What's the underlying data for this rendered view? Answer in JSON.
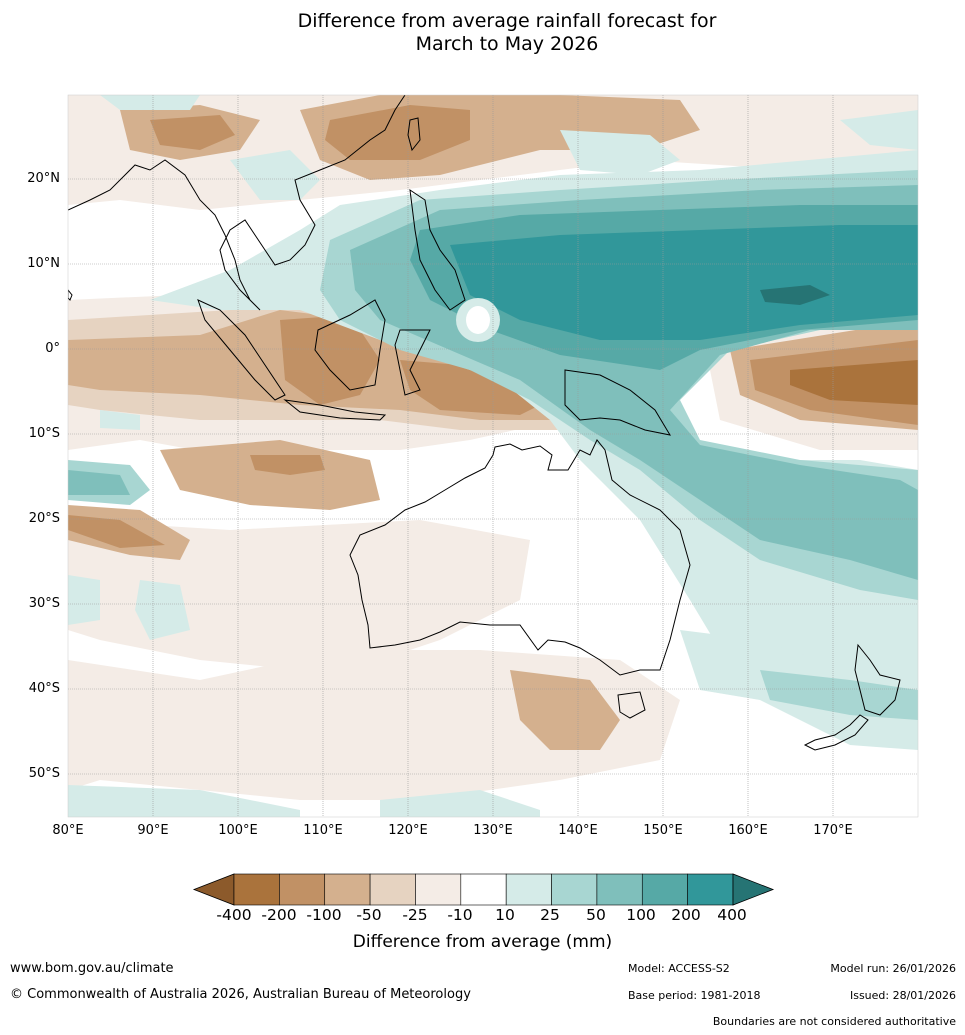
{
  "title": {
    "line1": "Difference from average rainfall forecast for",
    "line2": "March to May 2026"
  },
  "map": {
    "lat_labels": [
      "20°N",
      "10°N",
      "0°",
      "10°S",
      "20°S",
      "30°S",
      "40°S",
      "50°S"
    ],
    "lon_labels": [
      "80°E",
      "90°E",
      "100°E",
      "110°E",
      "120°E",
      "130°E",
      "140°E",
      "150°E",
      "160°E",
      "170°E"
    ]
  },
  "colorbar": {
    "tick_labels": [
      "-400",
      "-200",
      "-100",
      "-50",
      "-25",
      "-10",
      "10",
      "25",
      "50",
      "100",
      "200",
      "400"
    ],
    "colors": [
      "#8c5a2b",
      "#aa733c",
      "#c19165",
      "#d4b08e",
      "#e6d3c1",
      "#f4ece6",
      "#ffffff",
      "#d5ebe8",
      "#a8d6d2",
      "#7fbfbb",
      "#56a9a6",
      "#31979a",
      "#267474"
    ],
    "title": "Difference from average (mm)"
  },
  "footer": {
    "url": "www.bom.gov.au/climate",
    "copyright": "© Commonwealth of Australia 2026, Australian Bureau of Meteorology",
    "model": "Model: ACCESS-S2",
    "base_period": "Base period: 1981-2018",
    "model_run": "Model run: 26/01/2026",
    "issued": "Issued: 28/01/2026",
    "disclaimer": "Boundaries are not considered authoritative"
  }
}
